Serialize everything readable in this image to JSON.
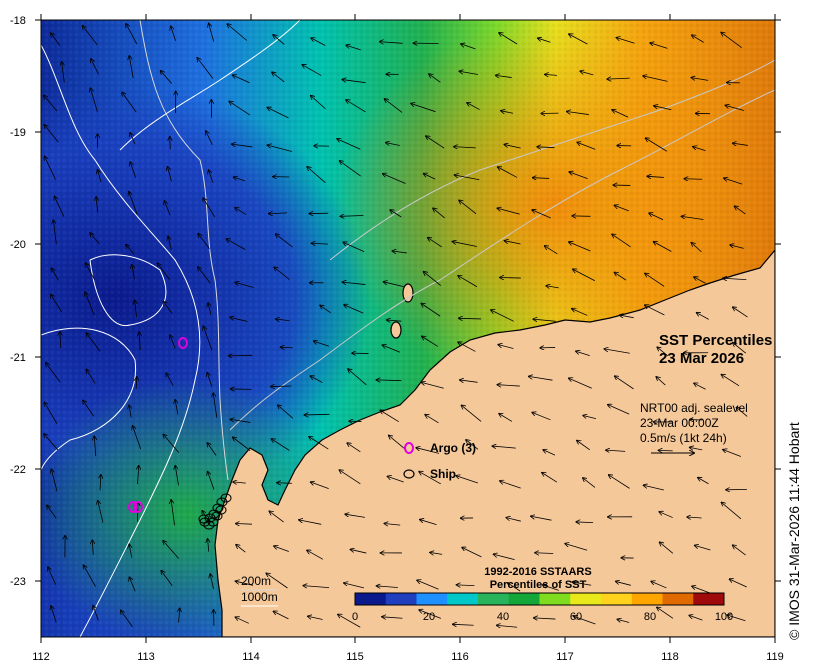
{
  "map": {
    "title_line1": "SST Percentiles",
    "title_line2": "23 Mar 2026",
    "current_legend": {
      "line1": "NRT00 adj. sealevel",
      "line2": "23-Mar 00:00Z",
      "line3": "0.5m/s (1kt 24h)"
    },
    "platforms": [
      {
        "label": "Argo (3)",
        "color": "#e000e0"
      },
      {
        "label": "Ship",
        "color": "#000000"
      }
    ],
    "isobaths": {
      "line1": "200m",
      "line2": "1000m"
    },
    "colorbar": {
      "title_line1": "1992-2016 SSTAARS",
      "title_line2": "Percentiles of SST",
      "tick_labels": [
        "0",
        "20",
        "40",
        "60",
        "80",
        "100"
      ],
      "colors": [
        "#0a1a8c",
        "#1f3fbf",
        "#1e90ff",
        "#00c8c8",
        "#29b35a",
        "#15a63a",
        "#7fdc1f",
        "#e8e81a",
        "#ffd21e",
        "#ffa500",
        "#e06a00",
        "#a00a0a"
      ]
    },
    "x_axis_labels": [
      "112",
      "113",
      "114",
      "115",
      "116",
      "117",
      "118",
      "119"
    ],
    "y_axis_labels": [
      "-18",
      "-19",
      "-20",
      "-21",
      "-22",
      "-23"
    ],
    "land_color": "#f5c89a",
    "copyright": "© IMOS 31-Mar-2026 11:44 Hobart"
  }
}
